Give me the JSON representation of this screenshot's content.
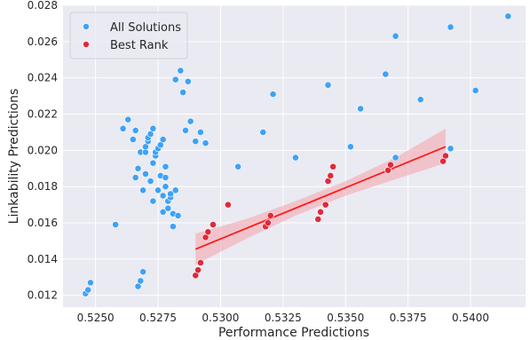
{
  "chart_data": {
    "type": "scatter",
    "xlabel": "Performance Predictions",
    "ylabel": "Linkability Predictions",
    "xlim": [
      0.5237,
      0.5422
    ],
    "ylim": [
      0.01135,
      0.028
    ],
    "xticks": [
      0.525,
      0.5275,
      0.53,
      0.5325,
      0.535,
      0.5375,
      0.54
    ],
    "xtick_labels": [
      "0.5250",
      "0.5275",
      "0.5300",
      "0.5325",
      "0.5350",
      "0.5375",
      "0.5400"
    ],
    "yticks": [
      0.012,
      0.014,
      0.016,
      0.018,
      0.02,
      0.022,
      0.024,
      0.026,
      0.028
    ],
    "ytick_labels": [
      "0.012",
      "0.014",
      "0.016",
      "0.018",
      "0.020",
      "0.022",
      "0.024",
      "0.026",
      "0.028"
    ],
    "grid": true,
    "legend_position": "top-left",
    "colors": {
      "all": "#3ea2f5",
      "best": "#de2a3c",
      "fit_line": "#ff1a1a",
      "band": "#f4a9b0",
      "plot_bg": "#eaeaf2",
      "grid": "#ffffff"
    },
    "series": [
      {
        "name": "All Solutions",
        "points": [
          [
            0.5246,
            0.0121
          ],
          [
            0.5247,
            0.0123
          ],
          [
            0.5248,
            0.0127
          ],
          [
            0.5258,
            0.0159
          ],
          [
            0.5261,
            0.0212
          ],
          [
            0.5263,
            0.0217
          ],
          [
            0.5265,
            0.0206
          ],
          [
            0.5266,
            0.0185
          ],
          [
            0.5266,
            0.0211
          ],
          [
            0.5267,
            0.0125
          ],
          [
            0.5267,
            0.019
          ],
          [
            0.5268,
            0.0128
          ],
          [
            0.5268,
            0.0199
          ],
          [
            0.5269,
            0.0133
          ],
          [
            0.5269,
            0.0178
          ],
          [
            0.527,
            0.0187
          ],
          [
            0.527,
            0.0199
          ],
          [
            0.527,
            0.0202
          ],
          [
            0.5271,
            0.0205
          ],
          [
            0.5271,
            0.0207
          ],
          [
            0.5272,
            0.0183
          ],
          [
            0.5272,
            0.0209
          ],
          [
            0.5273,
            0.0212
          ],
          [
            0.5273,
            0.0193
          ],
          [
            0.5273,
            0.0172
          ],
          [
            0.5274,
            0.0197
          ],
          [
            0.5274,
            0.0199
          ],
          [
            0.5275,
            0.0201
          ],
          [
            0.5275,
            0.0178
          ],
          [
            0.5276,
            0.0186
          ],
          [
            0.5276,
            0.0203
          ],
          [
            0.5277,
            0.0206
          ],
          [
            0.5277,
            0.0175
          ],
          [
            0.5277,
            0.0166
          ],
          [
            0.5278,
            0.0185
          ],
          [
            0.5278,
            0.0191
          ],
          [
            0.5278,
            0.018
          ],
          [
            0.5279,
            0.0168
          ],
          [
            0.5279,
            0.0172
          ],
          [
            0.528,
            0.0174
          ],
          [
            0.528,
            0.0176
          ],
          [
            0.5281,
            0.0165
          ],
          [
            0.5281,
            0.0158
          ],
          [
            0.5282,
            0.0178
          ],
          [
            0.5282,
            0.0239
          ],
          [
            0.5283,
            0.0164
          ],
          [
            0.5284,
            0.0244
          ],
          [
            0.5285,
            0.0232
          ],
          [
            0.5286,
            0.0211
          ],
          [
            0.5287,
            0.0238
          ],
          [
            0.5288,
            0.0216
          ],
          [
            0.529,
            0.0205
          ],
          [
            0.5292,
            0.021
          ],
          [
            0.5294,
            0.0204
          ],
          [
            0.5307,
            0.0191
          ],
          [
            0.5317,
            0.021
          ],
          [
            0.5321,
            0.0231
          ],
          [
            0.533,
            0.0196
          ],
          [
            0.5343,
            0.0236
          ],
          [
            0.5352,
            0.0202
          ],
          [
            0.5356,
            0.0223
          ],
          [
            0.5366,
            0.0242
          ],
          [
            0.537,
            0.0196
          ],
          [
            0.537,
            0.0263
          ],
          [
            0.538,
            0.0228
          ],
          [
            0.5392,
            0.0201
          ],
          [
            0.5392,
            0.0268
          ],
          [
            0.5402,
            0.0233
          ],
          [
            0.5415,
            0.0274
          ]
        ]
      },
      {
        "name": "Best Rank",
        "points": [
          [
            0.529,
            0.0131
          ],
          [
            0.5291,
            0.0134
          ],
          [
            0.5292,
            0.0138
          ],
          [
            0.5294,
            0.0152
          ],
          [
            0.5295,
            0.0155
          ],
          [
            0.5297,
            0.0159
          ],
          [
            0.5303,
            0.017
          ],
          [
            0.5318,
            0.0158
          ],
          [
            0.5319,
            0.016
          ],
          [
            0.532,
            0.0164
          ],
          [
            0.5339,
            0.0162
          ],
          [
            0.534,
            0.0166
          ],
          [
            0.5342,
            0.017
          ],
          [
            0.5343,
            0.0183
          ],
          [
            0.5344,
            0.0186
          ],
          [
            0.5345,
            0.0191
          ],
          [
            0.5367,
            0.0189
          ],
          [
            0.5368,
            0.0192
          ],
          [
            0.5389,
            0.0194
          ],
          [
            0.539,
            0.0197
          ]
        ]
      }
    ],
    "fit_line": [
      [
        0.529,
        0.01455
      ],
      [
        0.539,
        0.0202
      ]
    ],
    "confidence_band": [
      [
        0.529,
        0.0137,
        0.0154
      ],
      [
        0.531,
        0.0151,
        0.0162
      ],
      [
        0.533,
        0.0164,
        0.0172
      ],
      [
        0.535,
        0.0175,
        0.0183
      ],
      [
        0.537,
        0.0184,
        0.0196
      ],
      [
        0.539,
        0.0193,
        0.0212
      ]
    ]
  }
}
